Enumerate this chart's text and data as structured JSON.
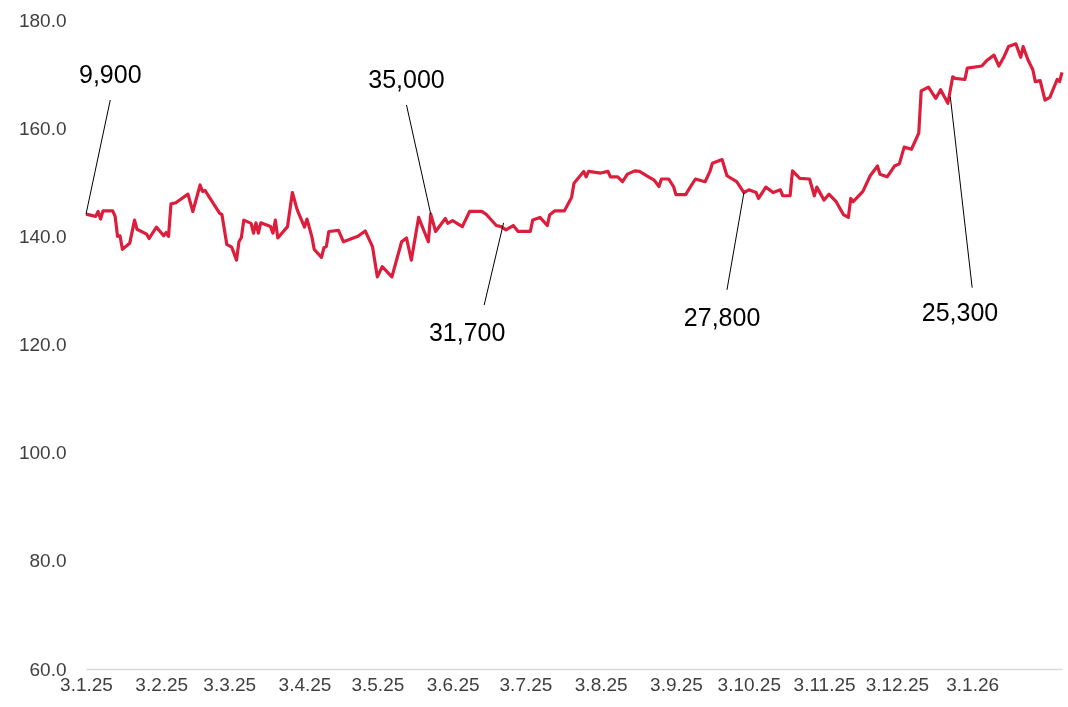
{
  "chart_data": {
    "type": "line",
    "color": "#dc1e3c",
    "x": [
      "2025-01-03",
      "2025-01-07",
      "2025-01-08",
      "2025-01-09",
      "2025-01-10",
      "2025-01-14",
      "2025-01-15",
      "2025-01-16",
      "2025-01-17",
      "2025-01-18",
      "2025-01-21",
      "2025-01-23",
      "2025-01-24",
      "2025-01-28",
      "2025-01-29",
      "2025-02-01",
      "2025-02-04",
      "2025-02-05",
      "2025-02-06",
      "2025-02-07",
      "2025-02-09",
      "2025-02-14",
      "2025-02-16",
      "2025-02-19",
      "2025-02-20",
      "2025-02-21",
      "2025-02-27",
      "2025-02-28",
      "2025-03-02",
      "2025-03-04",
      "2025-03-06",
      "2025-03-07",
      "2025-03-08",
      "2025-03-09",
      "2025-03-12",
      "2025-03-13",
      "2025-03-14",
      "2025-03-15",
      "2025-03-16",
      "2025-03-20",
      "2025-03-21",
      "2025-03-22",
      "2025-03-23",
      "2025-03-27",
      "2025-03-29",
      "2025-03-31",
      "2025-04-03",
      "2025-04-04",
      "2025-04-06",
      "2025-04-07",
      "2025-04-10",
      "2025-04-11",
      "2025-04-12",
      "2025-04-13",
      "2025-04-17",
      "2025-04-19",
      "2025-04-25",
      "2025-04-28",
      "2025-05-01",
      "2025-05-03",
      "2025-05-05",
      "2025-05-09",
      "2025-05-13",
      "2025-05-15",
      "2025-05-17",
      "2025-05-20",
      "2025-05-24",
      "2025-05-25",
      "2025-05-27",
      "2025-05-31",
      "2025-06-01",
      "2025-06-03",
      "2025-06-07",
      "2025-06-10",
      "2025-06-15",
      "2025-06-17",
      "2025-06-21",
      "2025-06-23",
      "2025-06-25",
      "2025-06-28",
      "2025-06-30",
      "2025-07-05",
      "2025-07-06",
      "2025-07-09",
      "2025-07-12",
      "2025-07-13",
      "2025-07-15",
      "2025-07-19",
      "2025-07-22",
      "2025-07-23",
      "2025-07-27",
      "2025-07-28",
      "2025-07-29",
      "2025-08-03",
      "2025-08-06",
      "2025-08-07",
      "2025-08-10",
      "2025-08-12",
      "2025-08-14",
      "2025-08-17",
      "2025-08-19",
      "2025-08-22",
      "2025-08-25",
      "2025-08-27",
      "2025-08-28",
      "2025-08-31",
      "2025-09-02",
      "2025-09-03",
      "2025-09-07",
      "2025-09-09",
      "2025-09-11",
      "2025-09-15",
      "2025-09-17",
      "2025-09-18",
      "2025-09-22",
      "2025-09-24",
      "2025-09-28",
      "2025-10-01",
      "2025-10-03",
      "2025-10-06",
      "2025-10-07",
      "2025-10-10",
      "2025-10-13",
      "2025-10-16",
      "2025-10-17",
      "2025-10-20",
      "2025-10-21",
      "2025-10-24",
      "2025-10-28",
      "2025-10-30",
      "2025-10-31",
      "2025-11-03",
      "2025-11-05",
      "2025-11-08",
      "2025-11-11",
      "2025-11-13",
      "2025-11-14",
      "2025-11-15",
      "2025-11-19",
      "2025-11-22",
      "2025-11-25",
      "2025-11-26",
      "2025-11-29",
      "2025-12-02",
      "2025-12-04",
      "2025-12-06",
      "2025-12-09",
      "2025-12-12",
      "2025-12-13",
      "2025-12-16",
      "2025-12-19",
      "2025-12-21",
      "2025-12-24",
      "2025-12-26",
      "2025-12-27",
      "2025-12-31",
      "2026-01-01",
      "2026-01-07",
      "2026-01-09",
      "2026-01-12",
      "2026-01-14",
      "2026-01-16",
      "2026-01-18",
      "2026-01-21",
      "2026-01-23",
      "2026-01-24",
      "2026-01-26",
      "2026-01-28",
      "2026-01-29",
      "2026-01-31",
      "2026-02-02",
      "2026-02-04",
      "2026-02-07",
      "2026-02-08",
      "2026-02-09"
    ],
    "values": [
      144.1,
      143.7,
      144.6,
      143.2,
      144.7,
      144.7,
      143.7,
      140.0,
      140.1,
      137.6,
      138.7,
      143.0,
      141.3,
      140.4,
      139.6,
      141.7,
      140.1,
      140.7,
      140.0,
      146.0,
      146.2,
      147.8,
      144.6,
      149.5,
      148.3,
      148.5,
      144.3,
      144.0,
      138.5,
      138.0,
      135.6,
      139.0,
      139.8,
      143.0,
      142.4,
      140.6,
      142.5,
      140.6,
      142.5,
      141.8,
      140.6,
      143.0,
      139.7,
      141.8,
      148.1,
      144.9,
      141.7,
      143.2,
      140.0,
      137.6,
      136.1,
      137.9,
      138.1,
      140.9,
      141.1,
      139.0,
      140.0,
      141.0,
      138.1,
      132.5,
      134.4,
      132.5,
      139.0,
      139.7,
      135.6,
      143.5,
      139.0,
      144.1,
      140.9,
      143.3,
      142.4,
      142.9,
      141.8,
      144.6,
      144.6,
      144.0,
      142.0,
      141.8,
      141.2,
      142.0,
      140.9,
      140.9,
      143.0,
      143.5,
      142.0,
      144.0,
      144.7,
      144.7,
      147.2,
      149.8,
      152.0,
      151.0,
      152.0,
      151.7,
      152.0,
      151.0,
      151.0,
      150.1,
      151.5,
      152.1,
      152.0,
      151.2,
      150.4,
      149.2,
      150.6,
      150.6,
      149.2,
      147.7,
      147.7,
      149.2,
      150.6,
      150.1,
      152.0,
      153.5,
      154.2,
      151.2,
      150.1,
      148.1,
      148.6,
      148.1,
      147.0,
      149.1,
      148.1,
      148.6,
      147.5,
      147.5,
      152.1,
      150.7,
      150.6,
      147.5,
      149.1,
      146.7,
      147.8,
      146.4,
      144.0,
      143.5,
      147.0,
      146.4,
      148.3,
      151.2,
      153.0,
      151.5,
      151.0,
      153.0,
      153.4,
      156.5,
      156.1,
      159.1,
      166.9,
      167.6,
      165.5,
      167.1,
      164.6,
      169.5,
      169.2,
      169.0,
      171.1,
      171.5,
      172.5,
      173.5,
      171.5,
      173.1,
      175.1,
      175.6,
      173.1,
      175.1,
      172.6,
      170.8,
      168.6,
      168.8,
      165.2,
      165.7,
      169.0,
      168.6,
      170.3
    ],
    "xlim": [
      "2025-01-03",
      "2026-02-09"
    ],
    "xticks": [
      {
        "value": "2025-01-03",
        "label": "3.1.25"
      },
      {
        "value": "2025-02-03",
        "label": "3.2.25"
      },
      {
        "value": "2025-03-03",
        "label": "3.3.25"
      },
      {
        "value": "2025-04-03",
        "label": "3.4.25"
      },
      {
        "value": "2025-05-03",
        "label": "3.5.25"
      },
      {
        "value": "2025-06-03",
        "label": "3.6.25"
      },
      {
        "value": "2025-07-03",
        "label": "3.7.25"
      },
      {
        "value": "2025-08-03",
        "label": "3.8.25"
      },
      {
        "value": "2025-09-03",
        "label": "3.9.25"
      },
      {
        "value": "2025-10-03",
        "label": "3.10.25"
      },
      {
        "value": "2025-11-03",
        "label": "3.11.25"
      },
      {
        "value": "2025-12-03",
        "label": "3.12.25"
      },
      {
        "value": "2026-01-03",
        "label": "3.1.26"
      }
    ],
    "ylim": [
      60,
      180
    ],
    "yticks": [
      {
        "value": 60,
        "label": "60.0"
      },
      {
        "value": 80,
        "label": "80.0"
      },
      {
        "value": 100,
        "label": "100.0"
      },
      {
        "value": 120,
        "label": "120.0"
      },
      {
        "value": 140,
        "label": "140.0"
      },
      {
        "value": 160,
        "label": "160.0"
      },
      {
        "value": 180,
        "label": "180.0"
      }
    ],
    "marker": "none",
    "line_style": "solid",
    "annotations": [
      {
        "text": "9,900",
        "x": "2025-01-03",
        "y": 144.1
      },
      {
        "text": "35,000",
        "x": "2025-05-25",
        "y": 144.1
      },
      {
        "text": "31,700",
        "x": "2025-06-24",
        "y": 142.5
      },
      {
        "text": "27,800",
        "x": "2025-10-01",
        "y": 148.1
      },
      {
        "text": "25,300",
        "x": "2025-12-25",
        "y": 165.8
      }
    ]
  }
}
